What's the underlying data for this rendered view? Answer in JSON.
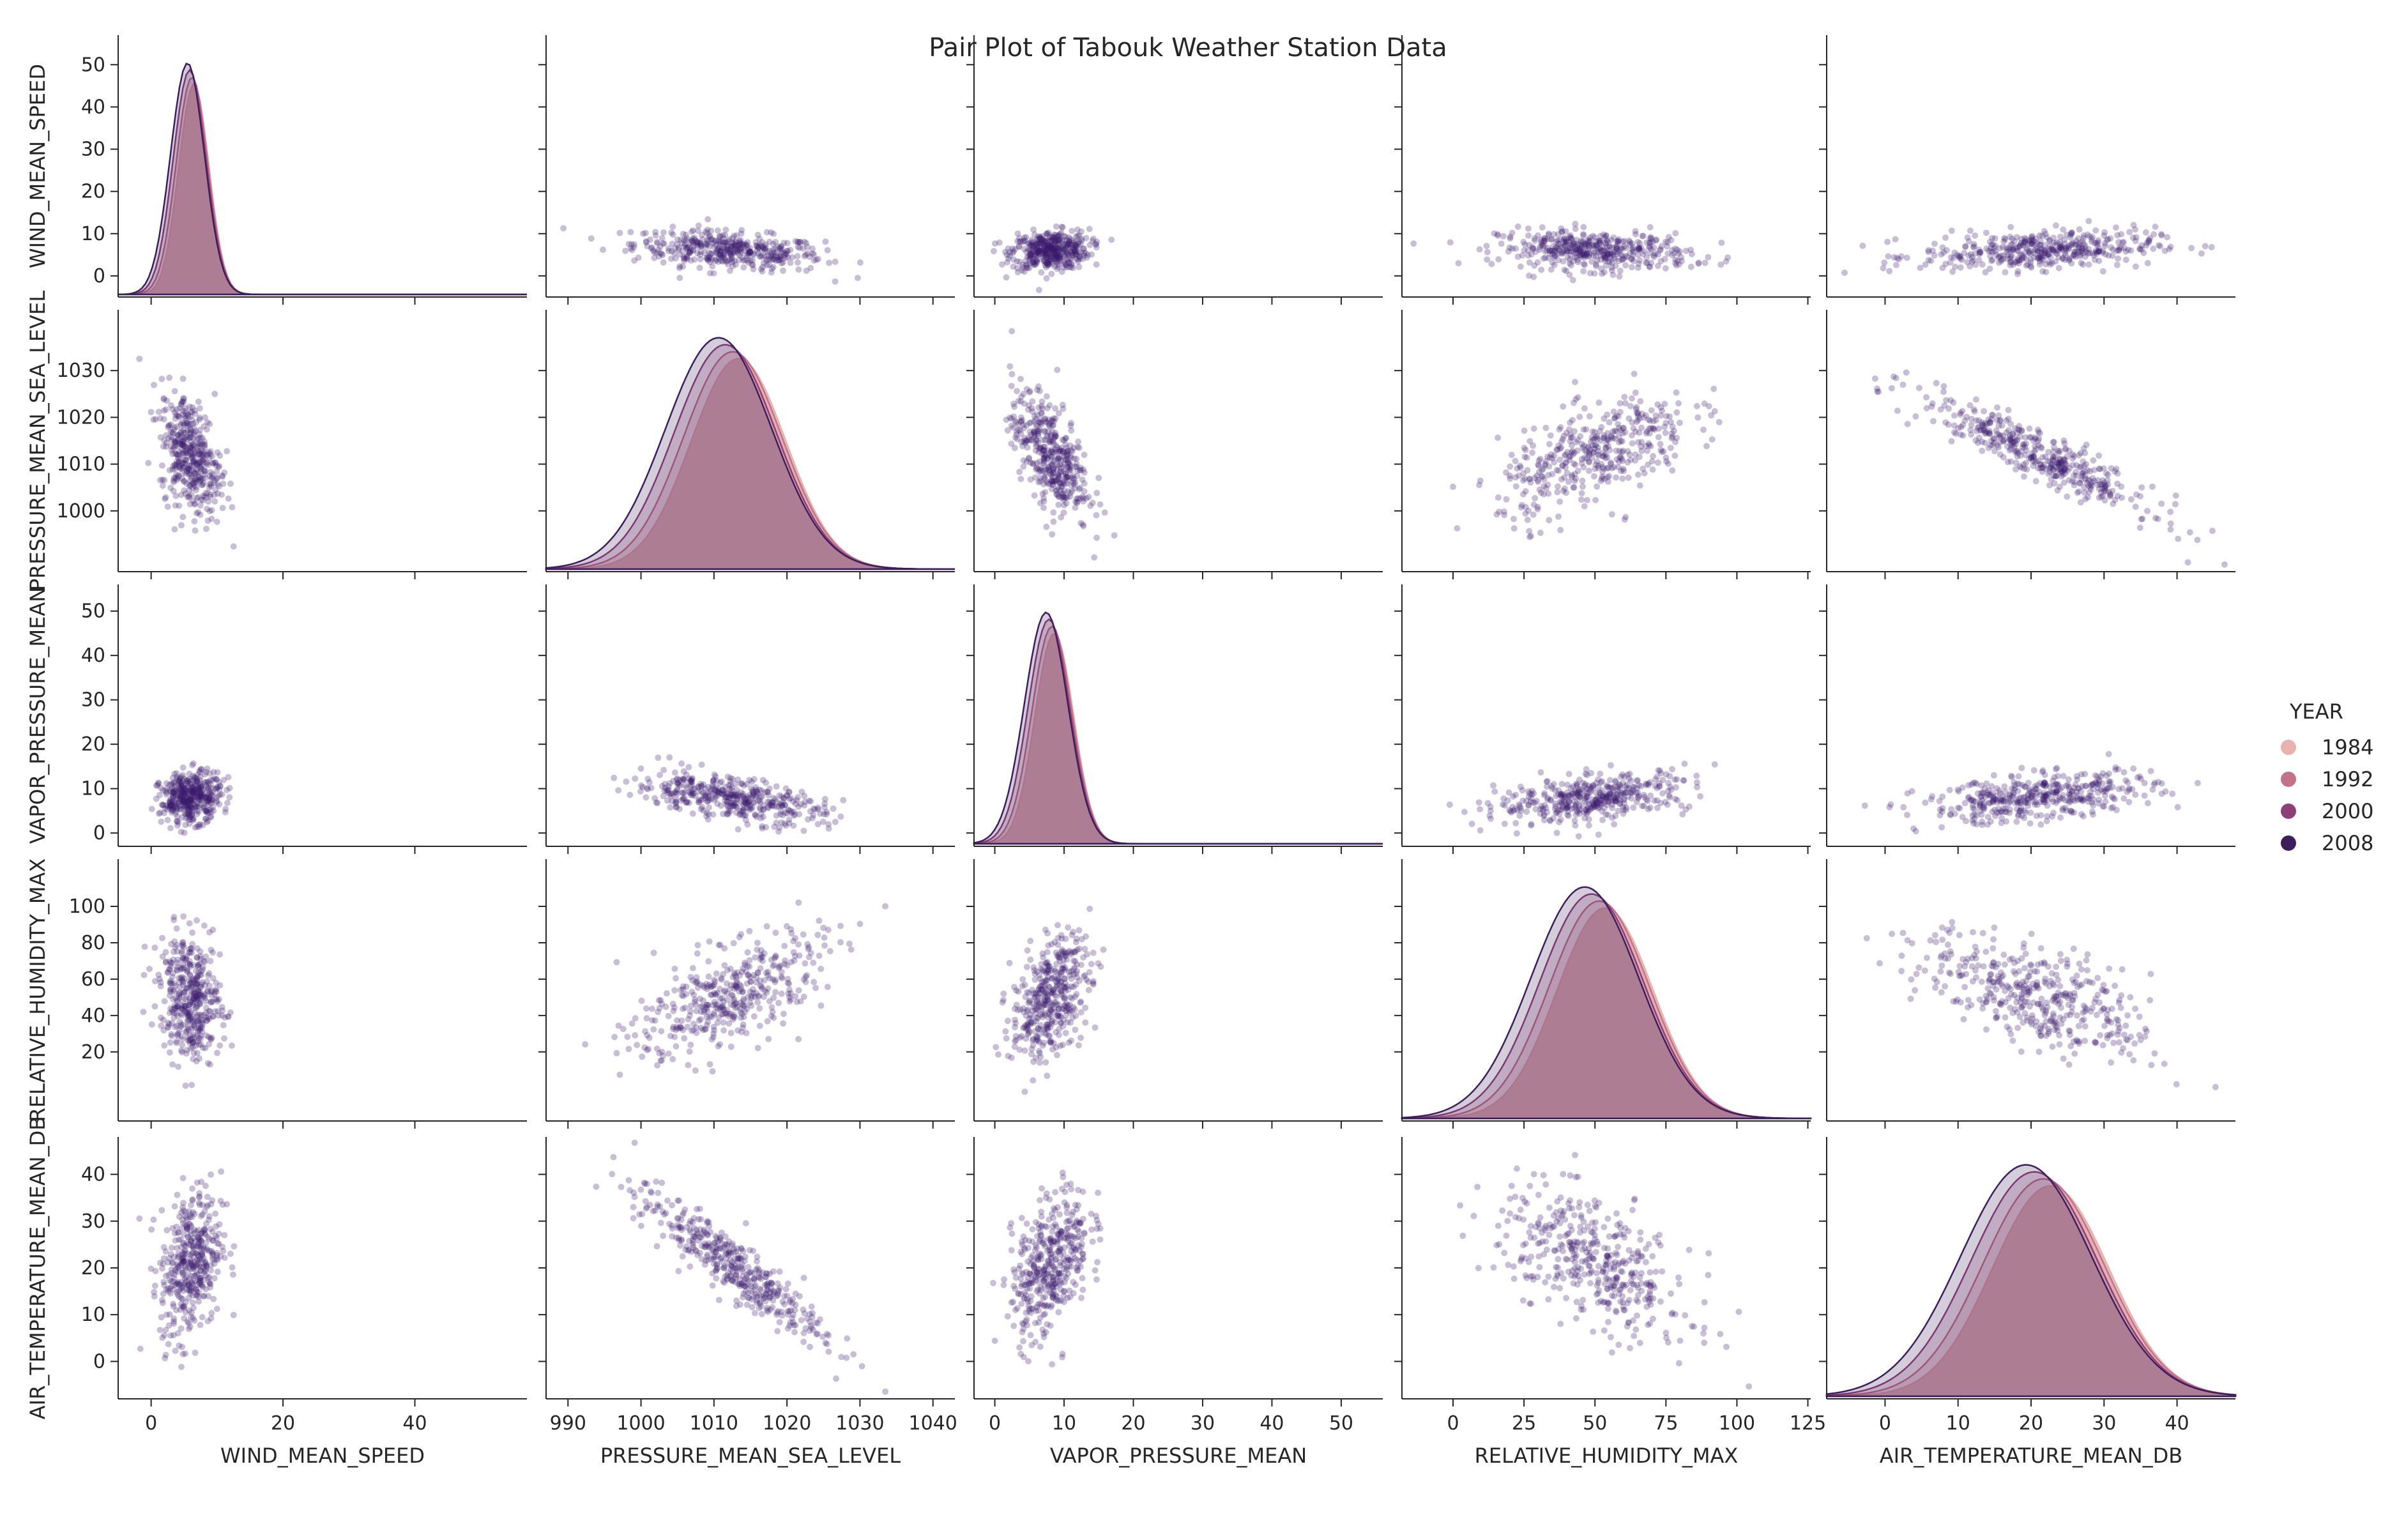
{
  "chart_data": {
    "type": "scatter",
    "title": "Pair Plot of Tabouk Weather Station Data",
    "variables": [
      {
        "key": "WIND_MEAN_SPEED",
        "label": "WIND_MEAN_SPEED",
        "range": [
          -5,
          57
        ],
        "ticks": [
          {
            "v": 0,
            "t": "0"
          },
          {
            "v": 20,
            "t": "20"
          },
          {
            "v": 40,
            "t": "40"
          }
        ],
        "yticks": [
          {
            "v": 0,
            "t": "0"
          },
          {
            "v": 10,
            "t": "10"
          },
          {
            "v": 20,
            "t": "20"
          },
          {
            "v": 30,
            "t": "30"
          },
          {
            "v": 40,
            "t": "40"
          },
          {
            "v": 50,
            "t": "50"
          }
        ],
        "mean": 6,
        "sd": 2.3
      },
      {
        "key": "PRESSURE_MEAN_SEA_LEVEL",
        "label": "PRESSURE_MEAN_SEA_LEVEL",
        "range": [
          987,
          1043
        ],
        "ticks": [
          {
            "v": 990,
            "t": "990"
          },
          {
            "v": 1000,
            "t": "1000"
          },
          {
            "v": 1010,
            "t": "1010"
          },
          {
            "v": 1020,
            "t": "1020"
          },
          {
            "v": 1030,
            "t": "1030"
          },
          {
            "v": 1040,
            "t": "1040"
          }
        ],
        "yticks": [
          {
            "v": 1000,
            "t": "1000"
          },
          {
            "v": 1010,
            "t": "1010"
          },
          {
            "v": 1020,
            "t": "1020"
          },
          {
            "v": 1030,
            "t": "1030"
          }
        ],
        "mean": 1012,
        "sd": 6.5
      },
      {
        "key": "VAPOR_PRESSURE_MEAN",
        "label": "VAPOR_PRESSURE_MEAN",
        "range": [
          -3,
          56
        ],
        "ticks": [
          {
            "v": 0,
            "t": "0"
          },
          {
            "v": 10,
            "t": "10"
          },
          {
            "v": 20,
            "t": "20"
          },
          {
            "v": 30,
            "t": "30"
          },
          {
            "v": 40,
            "t": "40"
          },
          {
            "v": 50,
            "t": "50"
          }
        ],
        "yticks": [
          {
            "v": 0,
            "t": "0"
          },
          {
            "v": 10,
            "t": "10"
          },
          {
            "v": 20,
            "t": "20"
          },
          {
            "v": 30,
            "t": "30"
          },
          {
            "v": 40,
            "t": "40"
          },
          {
            "v": 50,
            "t": "50"
          }
        ],
        "mean": 8,
        "sd": 2.8
      },
      {
        "key": "RELATIVE_HUMIDITY_MAX",
        "label": "RELATIVE_HUMIDITY_MAX",
        "range": [
          -18,
          126
        ],
        "ticks": [
          {
            "v": 0,
            "t": "0"
          },
          {
            "v": 25,
            "t": "25"
          },
          {
            "v": 50,
            "t": "50"
          },
          {
            "v": 75,
            "t": "75"
          },
          {
            "v": 100,
            "t": "100"
          },
          {
            "v": 125,
            "t": "125"
          }
        ],
        "yticks": [
          {
            "v": 20,
            "t": "20"
          },
          {
            "v": 40,
            "t": "40"
          },
          {
            "v": 60,
            "t": "60"
          },
          {
            "v": 80,
            "t": "80"
          },
          {
            "v": 100,
            "t": "100"
          }
        ],
        "mean": 50,
        "sd": 17
      },
      {
        "key": "AIR_TEMPERATURE_MEAN_DB",
        "label": "AIR_TEMPERATURE_MEAN_DB",
        "range": [
          -8,
          48
        ],
        "ticks": [
          {
            "v": 0,
            "t": "0"
          },
          {
            "v": 10,
            "t": "10"
          },
          {
            "v": 20,
            "t": "20"
          },
          {
            "v": 30,
            "t": "30"
          },
          {
            "v": 40,
            "t": "40"
          }
        ],
        "yticks": [
          {
            "v": 0,
            "t": "0"
          },
          {
            "v": 10,
            "t": "10"
          },
          {
            "v": 20,
            "t": "20"
          },
          {
            "v": 30,
            "t": "30"
          },
          {
            "v": 40,
            "t": "40"
          }
        ],
        "mean": 21,
        "sd": 8
      }
    ],
    "correlations": [
      [
        1,
        -0.35,
        0.1,
        -0.15,
        0.25
      ],
      [
        -0.35,
        1,
        -0.55,
        0.6,
        -0.92
      ],
      [
        0.1,
        -0.55,
        1,
        0.45,
        0.45
      ],
      [
        -0.15,
        0.6,
        0.45,
        1,
        -0.6
      ],
      [
        0.25,
        -0.92,
        0.45,
        -0.6,
        1
      ]
    ],
    "legend": {
      "title": "YEAR",
      "placement": "right",
      "entries": [
        {
          "label": "1984",
          "color": "#e8b3ae"
        },
        {
          "label": "1992",
          "color": "#c4728a"
        },
        {
          "label": "2000",
          "color": "#8f3f78"
        },
        {
          "label": "2008",
          "color": "#3d1e5c"
        }
      ]
    },
    "scatter_color": "#3b1a6b",
    "kde_fill": "#e8bcb6"
  }
}
